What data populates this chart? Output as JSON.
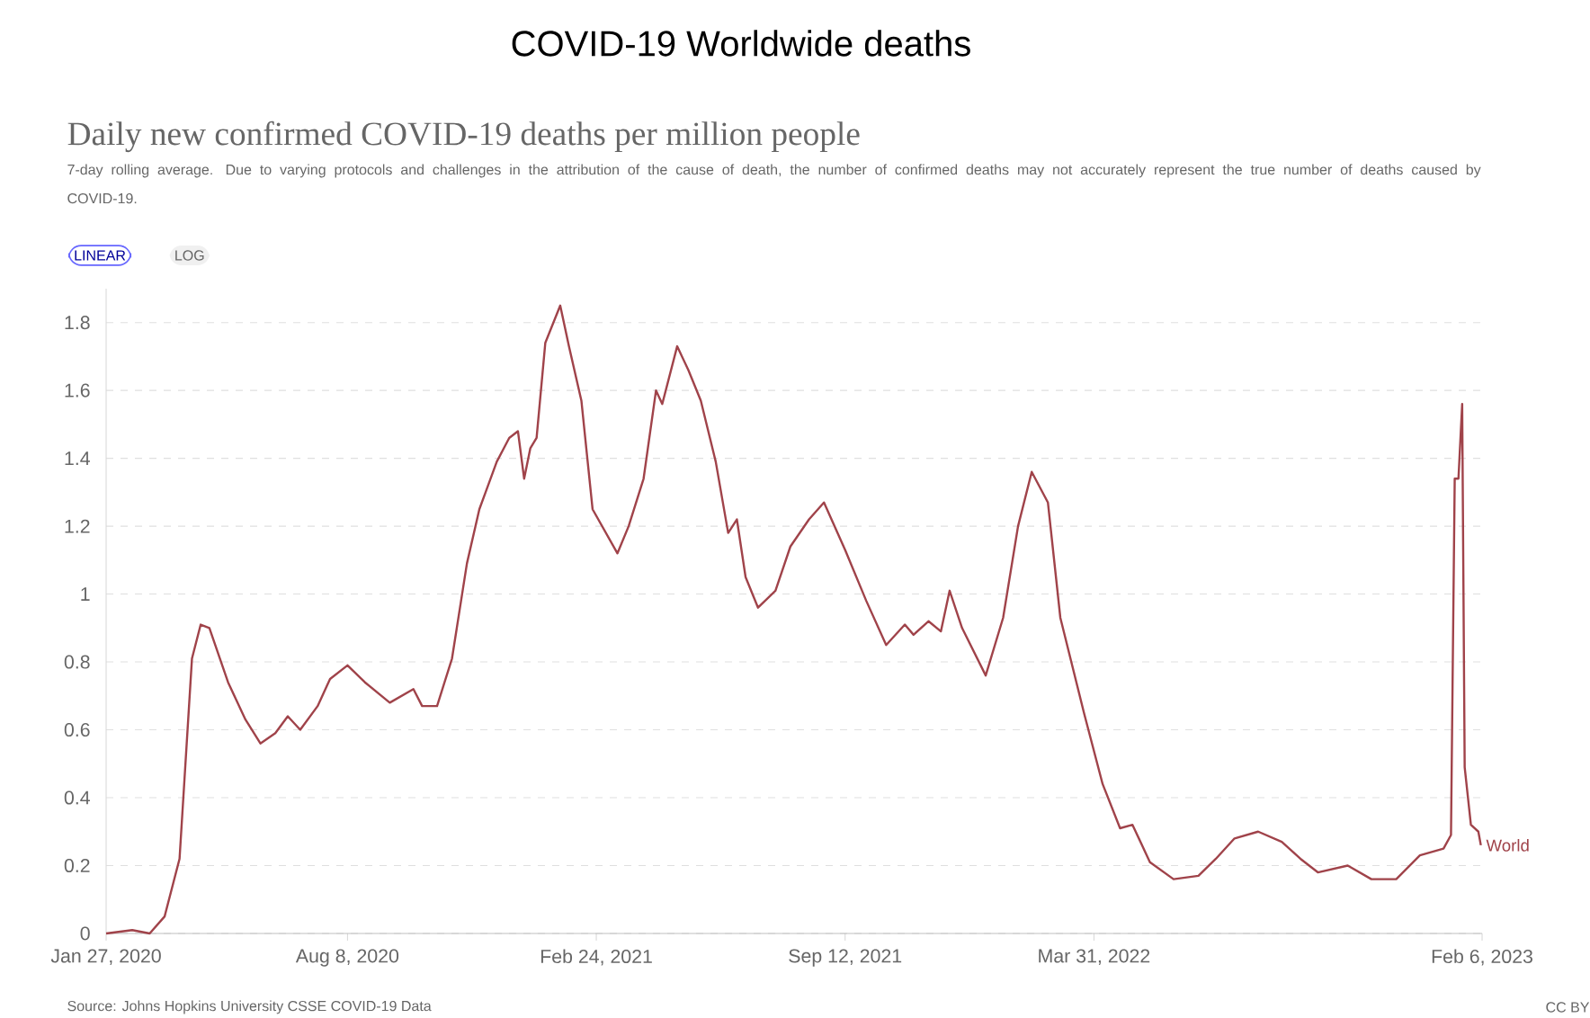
{
  "chart_data": {
    "type": "line",
    "title": "COVID-19 Worldwide deaths",
    "subtitle": "Daily new confirmed COVID-19 deaths per million people",
    "annotations": [
      "7-day rolling average. Due to varying protocols and challenges in the attribution of the cause of death, the number of confirmed deaths may not accurately represent the true number of deaths caused by COVID-19.",
      "LINEAR",
      "LOG",
      "Source: Johns Hopkins University CSSE COVID-19 Data",
      "CC BY"
    ],
    "x": [
      "2020-01-27",
      "2020-02-17",
      "2020-03-02",
      "2020-03-14",
      "2020-03-26",
      "2020-04-05",
      "2020-04-12",
      "2020-04-19",
      "2020-05-04",
      "2020-05-18",
      "2020-05-30",
      "2020-06-11",
      "2020-06-21",
      "2020-07-01",
      "2020-07-15",
      "2020-07-25",
      "2020-08-08",
      "2020-08-22",
      "2020-09-11",
      "2020-09-30",
      "2020-10-07",
      "2020-10-19",
      "2020-10-31",
      "2020-11-12",
      "2020-11-22",
      "2020-11-27",
      "2020-12-06",
      "2020-12-16",
      "2020-12-23",
      "2020-12-28",
      "2021-01-02",
      "2021-01-07",
      "2021-01-14",
      "2021-01-26",
      "2021-02-02",
      "2021-02-12",
      "2021-02-21",
      "2021-03-13",
      "2021-03-22",
      "2021-04-03",
      "2021-04-13",
      "2021-04-18",
      "2021-04-30",
      "2021-05-09",
      "2021-05-19",
      "2021-05-31",
      "2021-06-10",
      "2021-06-17",
      "2021-06-24",
      "2021-07-04",
      "2021-07-18",
      "2021-07-30",
      "2021-08-14",
      "2021-08-26",
      "2021-09-12",
      "2021-09-29",
      "2021-10-15",
      "2021-10-30",
      "2021-11-06",
      "2021-11-18",
      "2021-11-28",
      "2021-12-05",
      "2021-12-15",
      "2022-01-03",
      "2022-01-17",
      "2022-01-29",
      "2022-02-09",
      "2022-02-22",
      "2022-03-04",
      "2022-03-23",
      "2022-04-07",
      "2022-04-21",
      "2022-05-01",
      "2022-05-15",
      "2022-06-03",
      "2022-06-23",
      "2022-07-07",
      "2022-07-22",
      "2022-08-10",
      "2022-08-29",
      "2022-09-13",
      "2022-09-27",
      "2022-10-21",
      "2022-11-09",
      "2022-11-29",
      "2022-12-18",
      "2023-01-06",
      "2023-01-12",
      "2023-01-15",
      "2023-01-18",
      "2023-01-21",
      "2023-01-23",
      "2023-01-28",
      "2023-02-03",
      "2023-02-05"
    ],
    "series": [
      {
        "name": "World",
        "color": "#a0434a",
        "values": [
          0,
          0.01,
          0,
          0.05,
          0.22,
          0.81,
          0.91,
          0.9,
          0.74,
          0.63,
          0.56,
          0.59,
          0.64,
          0.6,
          0.67,
          0.75,
          0.79,
          0.74,
          0.68,
          0.72,
          0.67,
          0.67,
          0.81,
          1.09,
          1.25,
          1.3,
          1.39,
          1.46,
          1.48,
          1.34,
          1.43,
          1.46,
          1.74,
          1.85,
          1.73,
          1.57,
          1.25,
          1.12,
          1.2,
          1.34,
          1.6,
          1.56,
          1.73,
          1.66,
          1.57,
          1.39,
          1.18,
          1.22,
          1.05,
          0.96,
          1.01,
          1.14,
          1.22,
          1.27,
          1.13,
          0.98,
          0.85,
          0.91,
          0.88,
          0.92,
          0.89,
          1.01,
          0.9,
          0.76,
          0.93,
          1.2,
          1.36,
          1.27,
          0.93,
          0.65,
          0.44,
          0.31,
          0.32,
          0.21,
          0.16,
          0.17,
          0.22,
          0.28,
          0.3,
          0.27,
          0.22,
          0.18,
          0.2,
          0.16,
          0.16,
          0.23,
          0.25,
          0.29,
          1.34,
          1.34,
          1.56,
          0.49,
          0.32,
          0.3,
          0.26
        ]
      }
    ],
    "xlim": [
      "2020-01-27",
      "2023-02-06"
    ],
    "xticks": [
      {
        "value": "2020-01-27",
        "label": "Jan 27, 2020"
      },
      {
        "value": "2020-08-08",
        "label": "Aug 8, 2020"
      },
      {
        "value": "2021-02-24",
        "label": "Feb 24, 2021"
      },
      {
        "value": "2021-09-12",
        "label": "Sep 12, 2021"
      },
      {
        "value": "2022-03-31",
        "label": "Mar 31, 2022"
      },
      {
        "value": "2023-02-06",
        "label": "Feb 6, 2023"
      }
    ],
    "ylim": [
      0,
      1.9
    ],
    "yticks": [
      0,
      0.2,
      0.4,
      0.6,
      0.8,
      1,
      1.2,
      1.4,
      1.6,
      1.8
    ],
    "grid": "y"
  }
}
